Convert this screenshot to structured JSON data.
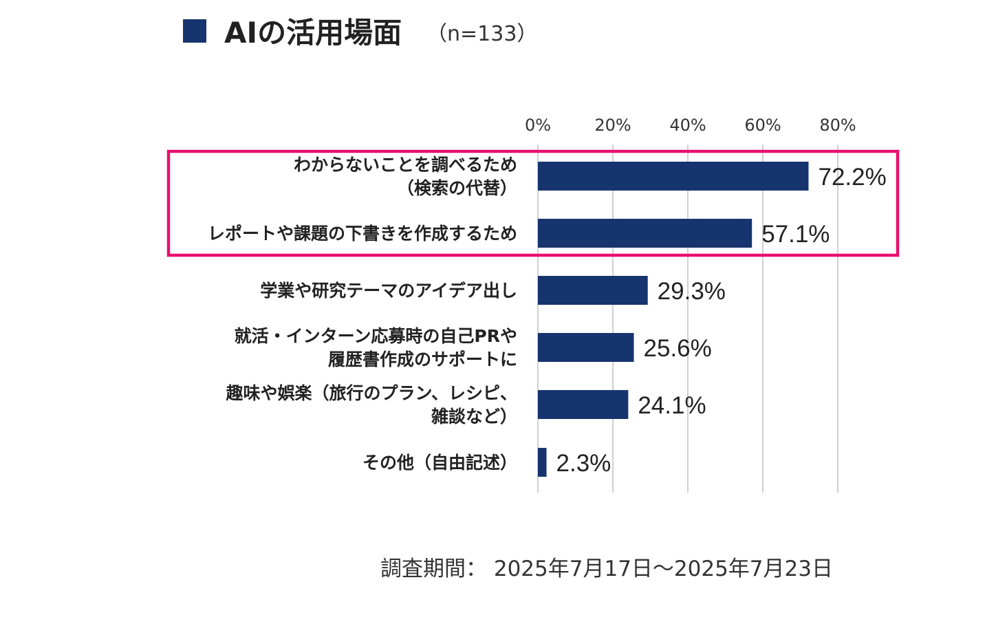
{
  "title": "AIの活用場面",
  "subtitle": "（n=133）",
  "footnote": "調査期間： 2025年7月17日～2025年7月23日",
  "colors": {
    "bar": "#16346e",
    "highlight": "#e8106e",
    "grid": "#d0d0d0",
    "marker": "#16346e"
  },
  "chart_data": {
    "type": "bar",
    "orientation": "horizontal",
    "categories": [
      [
        "わからないことを調べるため",
        "（検索の代替）"
      ],
      [
        "レポートや課題の下書きを作成するため"
      ],
      [
        "学業や研究テーマのアイデア出し"
      ],
      [
        "就活・インターン応募時の自己PRや",
        "履歴書作成のサポートに"
      ],
      [
        "趣味や娯楽（旅行のプラン、レシピ、",
        "雑談など）"
      ],
      [
        "その他（自由記述）"
      ]
    ],
    "values": [
      72.2,
      57.1,
      29.3,
      25.6,
      24.1,
      2.3
    ],
    "value_labels": [
      "72.2%",
      "57.1%",
      "29.3%",
      "25.6%",
      "24.1%",
      "2.3%"
    ],
    "xlim": [
      0,
      80
    ],
    "ticks": [
      0,
      20,
      40,
      60,
      80
    ],
    "tick_labels": [
      "0%",
      "20%",
      "40%",
      "60%",
      "80%"
    ],
    "grid": true,
    "highlighted_categories": [
      0,
      1
    ]
  }
}
